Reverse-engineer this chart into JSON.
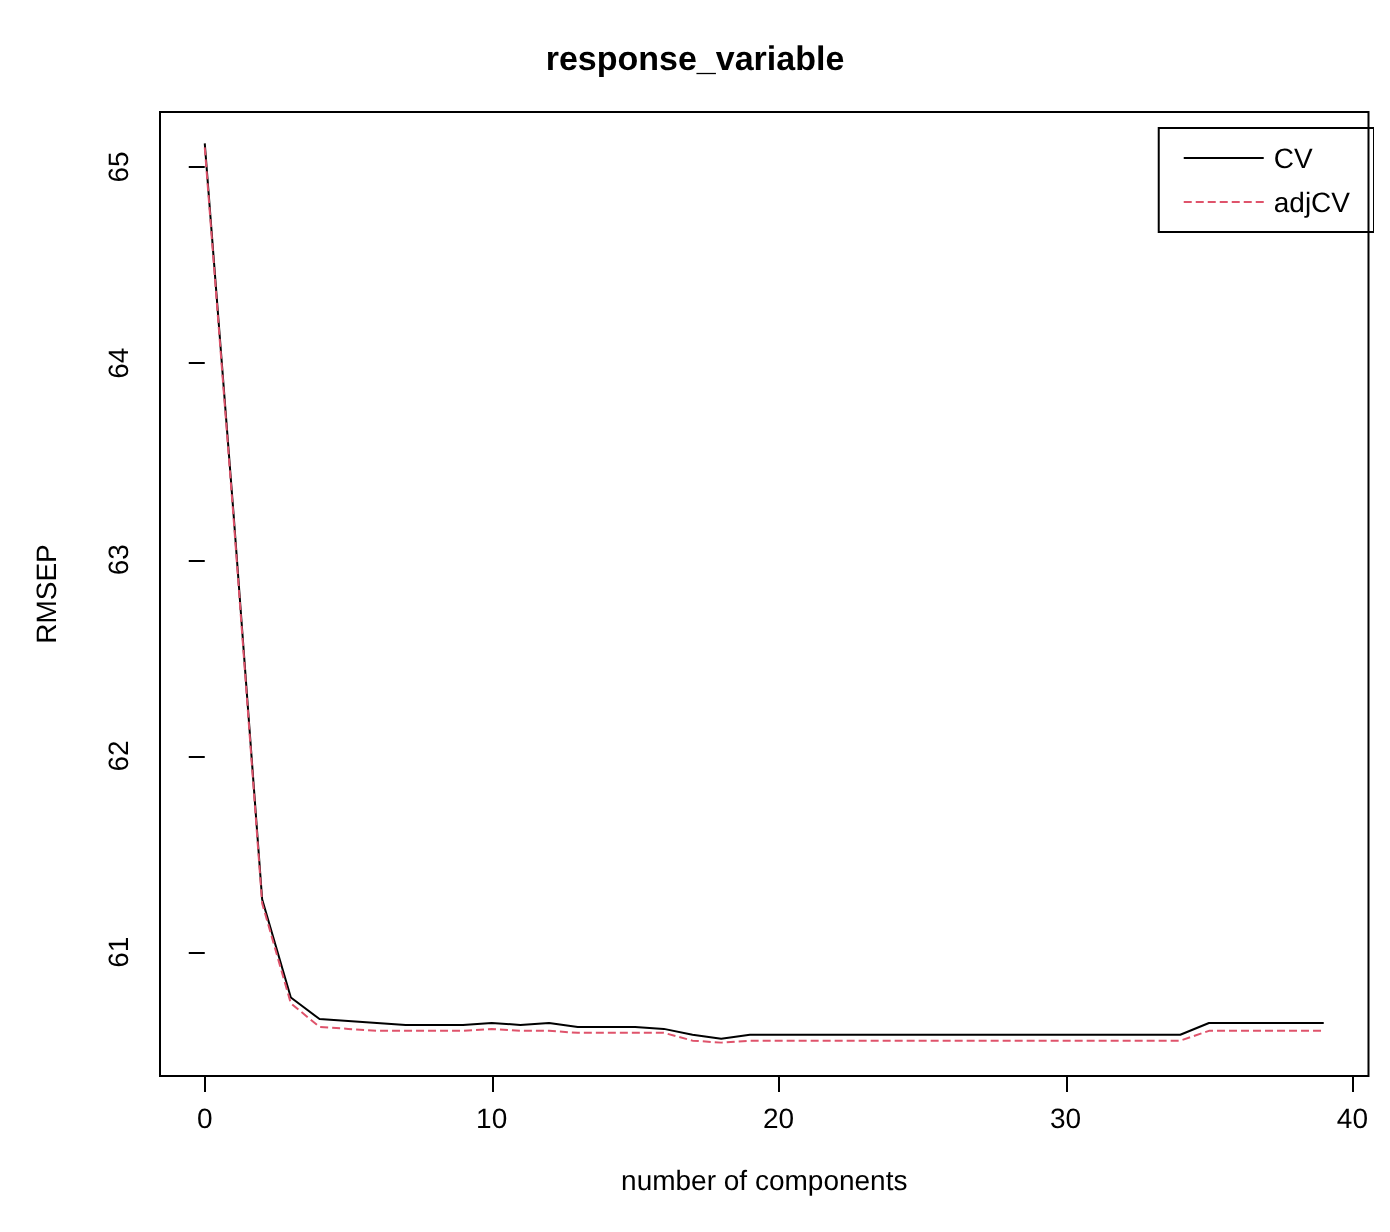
{
  "chart_data": {
    "type": "line",
    "title": "response_variable",
    "xlabel": "number of components",
    "ylabel": "RMSEP",
    "x": [
      0,
      1,
      2,
      3,
      4,
      5,
      6,
      7,
      8,
      9,
      10,
      11,
      12,
      13,
      14,
      15,
      16,
      17,
      18,
      19,
      20,
      21,
      22,
      23,
      24,
      25,
      26,
      27,
      28,
      29,
      30,
      31,
      32,
      33,
      34,
      35,
      36,
      37,
      38,
      39
    ],
    "series": [
      {
        "name": "CV",
        "color": "#000000",
        "line_style": "solid",
        "values": [
          65.12,
          63.24,
          61.27,
          60.77,
          60.66,
          60.65,
          60.64,
          60.63,
          60.63,
          60.63,
          60.64,
          60.63,
          60.64,
          60.62,
          60.62,
          60.62,
          60.61,
          60.58,
          60.56,
          60.58,
          60.58,
          60.58,
          60.58,
          60.58,
          60.58,
          60.58,
          60.58,
          60.58,
          60.58,
          60.58,
          60.58,
          60.58,
          60.58,
          60.58,
          60.58,
          60.64,
          60.64,
          60.64,
          60.64,
          60.64
        ]
      },
      {
        "name": "adjCV",
        "color": "#df536b",
        "line_style": "dashed",
        "values": [
          65.1,
          63.22,
          61.25,
          60.74,
          60.62,
          60.61,
          60.6,
          60.6,
          60.6,
          60.6,
          60.61,
          60.6,
          60.6,
          60.59,
          60.59,
          60.59,
          60.59,
          60.55,
          60.54,
          60.55,
          60.55,
          60.55,
          60.55,
          60.55,
          60.55,
          60.55,
          60.55,
          60.55,
          60.55,
          60.55,
          60.55,
          60.55,
          60.55,
          60.55,
          60.55,
          60.6,
          60.6,
          60.6,
          60.6,
          60.6
        ]
      }
    ],
    "xlim": [
      -1.56,
      40.56
    ],
    "xticks": [
      0,
      10,
      20,
      30,
      40
    ],
    "ylim": [
      60.37,
      65.28
    ],
    "yticks": [
      61,
      62,
      63,
      64,
      65
    ],
    "grid": false,
    "legend": "top right",
    "marker": "none"
  }
}
